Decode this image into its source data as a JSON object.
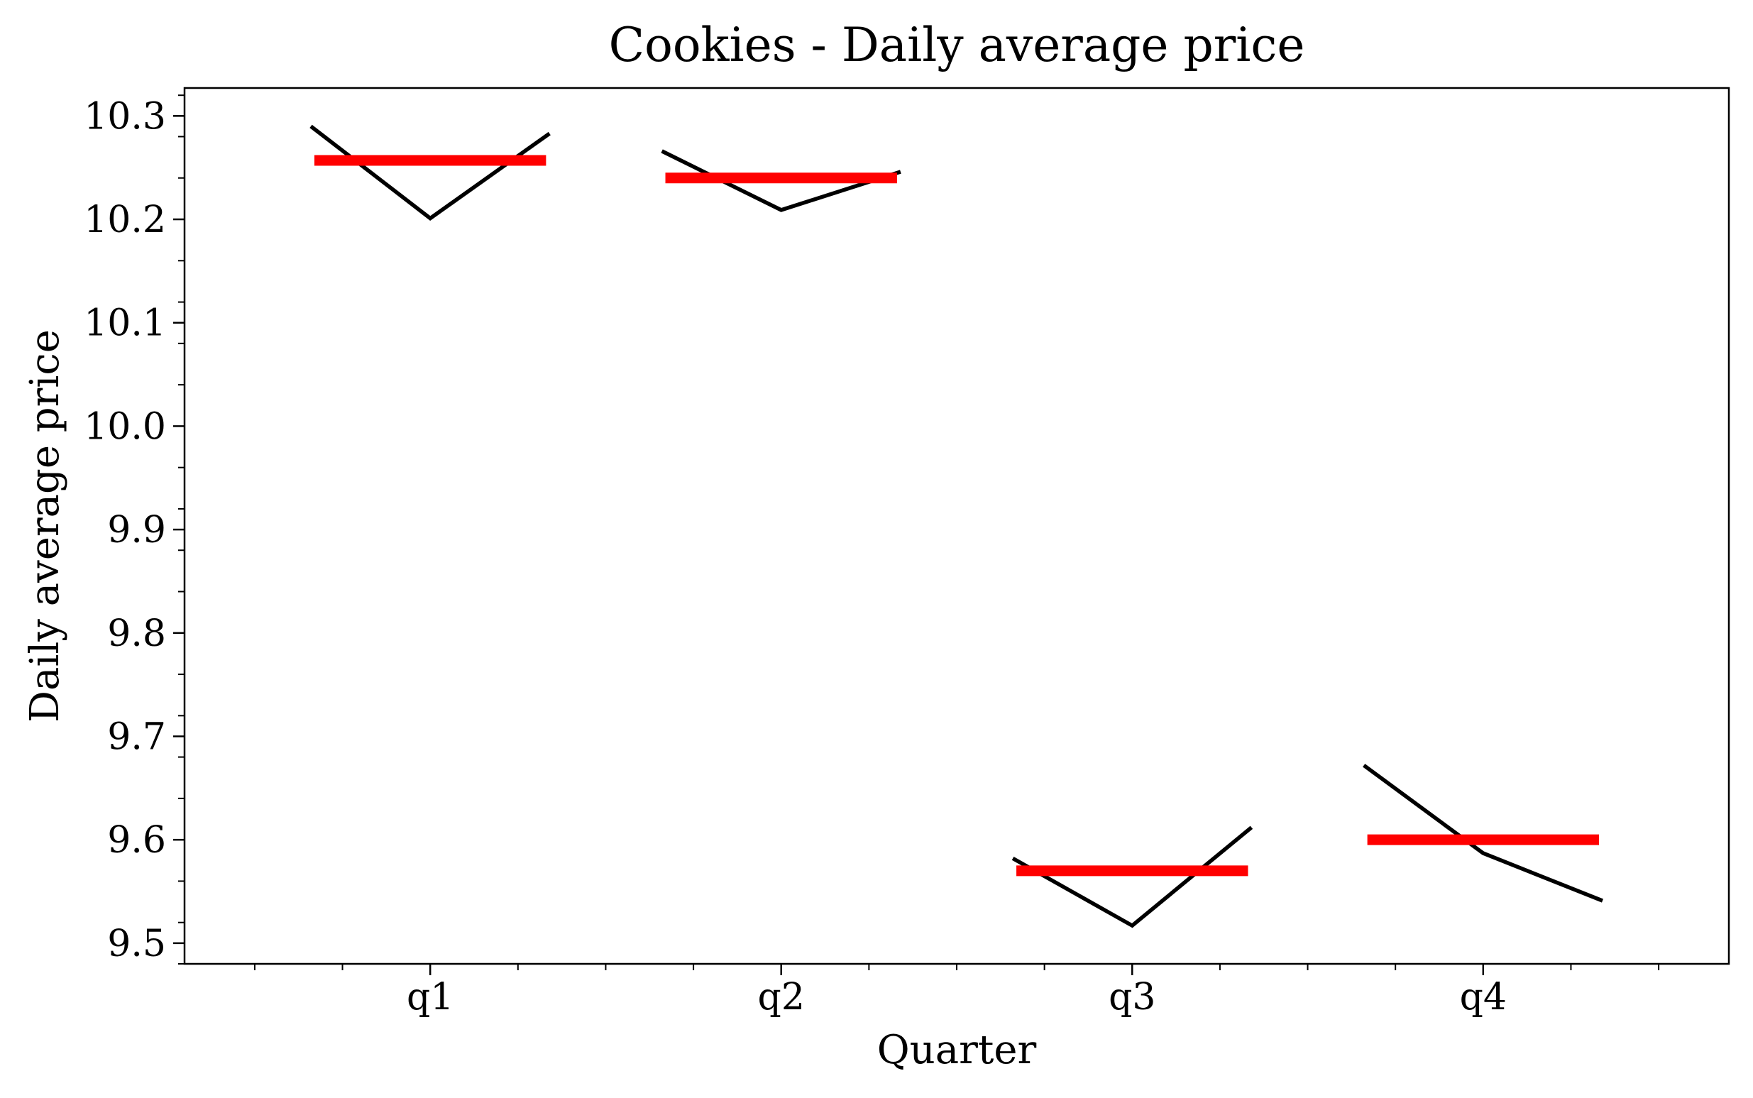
{
  "chart_data": {
    "type": "line",
    "title": "Cookies - Daily average price",
    "xlabel": "Quarter",
    "ylabel": "Daily average price",
    "categories": [
      "q1",
      "q2",
      "q3",
      "q4"
    ],
    "y_ticks": [
      "9.5",
      "9.6",
      "9.7",
      "9.8",
      "9.9",
      "10.0",
      "10.1",
      "10.2",
      "10.3"
    ],
    "ylim": [
      9.48,
      10.327
    ],
    "xlim": [
      -0.7,
      3.7
    ],
    "grid": false,
    "colors": {
      "trend_line": "#000000",
      "mean_line": "#ff0000"
    },
    "series": [
      {
        "category": "q1",
        "mean": 10.257,
        "points": [
          {
            "x": -0.34,
            "y": 10.29
          },
          {
            "x": 0.0,
            "y": 10.201
          },
          {
            "x": 0.34,
            "y": 10.283
          }
        ]
      },
      {
        "category": "q2",
        "mean": 10.24,
        "points": [
          {
            "x": 0.66,
            "y": 10.266
          },
          {
            "x": 1.0,
            "y": 10.209
          },
          {
            "x": 1.34,
            "y": 10.246
          }
        ]
      },
      {
        "category": "q3",
        "mean": 9.57,
        "points": [
          {
            "x": 1.66,
            "y": 9.582
          },
          {
            "x": 2.0,
            "y": 9.517
          },
          {
            "x": 2.34,
            "y": 9.612
          }
        ]
      },
      {
        "category": "q4",
        "mean": 9.6,
        "points": [
          {
            "x": 2.66,
            "y": 9.672
          },
          {
            "x": 3.0,
            "y": 9.587
          },
          {
            "x": 3.34,
            "y": 9.541
          }
        ]
      }
    ]
  }
}
